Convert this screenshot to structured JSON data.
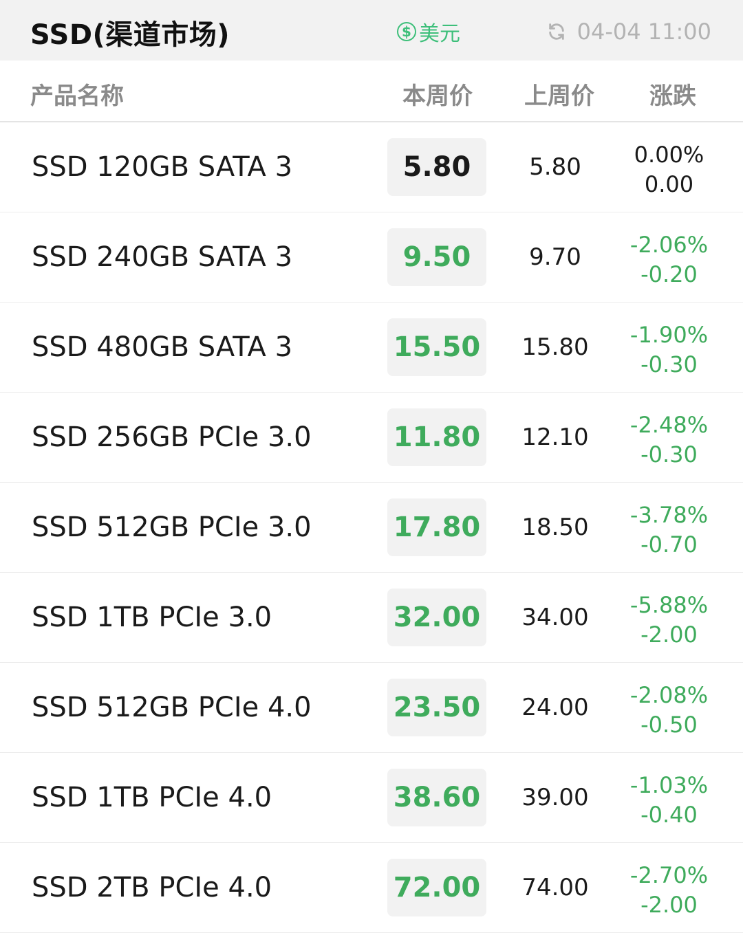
{
  "header": {
    "title": "SSD(渠道市场)",
    "currency_symbol": "$",
    "currency_label": "美元",
    "update_time": "04-04 11:00",
    "refresh_icon": "refresh-icon"
  },
  "columns": {
    "name": "产品名称",
    "this_week": "本周价",
    "last_week": "上周价",
    "change": "涨跌"
  },
  "colors": {
    "down": "#3fab5c",
    "neutral": "#1a1a1a",
    "accent": "#3dbf7a"
  },
  "rows": [
    {
      "name": "SSD 120GB SATA 3",
      "price": "5.80",
      "last": "5.80",
      "pct": "0.00%",
      "diff": "0.00",
      "trend": "flat"
    },
    {
      "name": "SSD 240GB SATA 3",
      "price": "9.50",
      "last": "9.70",
      "pct": "-2.06%",
      "diff": "-0.20",
      "trend": "down"
    },
    {
      "name": "SSD 480GB SATA 3",
      "price": "15.50",
      "last": "15.80",
      "pct": "-1.90%",
      "diff": "-0.30",
      "trend": "down"
    },
    {
      "name": "SSD 256GB PCIe 3.0",
      "price": "11.80",
      "last": "12.10",
      "pct": "-2.48%",
      "diff": "-0.30",
      "trend": "down"
    },
    {
      "name": "SSD 512GB PCIe 3.0",
      "price": "17.80",
      "last": "18.50",
      "pct": "-3.78%",
      "diff": "-0.70",
      "trend": "down"
    },
    {
      "name": "SSD 1TB PCIe 3.0",
      "price": "32.00",
      "last": "34.00",
      "pct": "-5.88%",
      "diff": "-2.00",
      "trend": "down"
    },
    {
      "name": "SSD 512GB PCIe 4.0",
      "price": "23.50",
      "last": "24.00",
      "pct": "-2.08%",
      "diff": "-0.50",
      "trend": "down"
    },
    {
      "name": "SSD 1TB PCIe 4.0",
      "price": "38.60",
      "last": "39.00",
      "pct": "-1.03%",
      "diff": "-0.40",
      "trend": "down"
    },
    {
      "name": "SSD 2TB PCIe 4.0",
      "price": "72.00",
      "last": "74.00",
      "pct": "-2.70%",
      "diff": "-2.00",
      "trend": "down"
    }
  ]
}
